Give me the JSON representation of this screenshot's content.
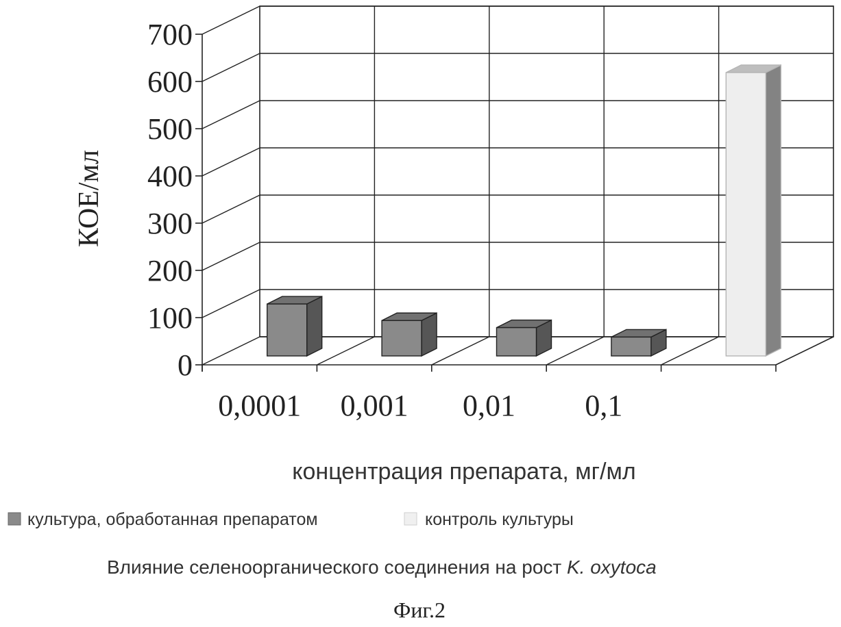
{
  "chart_data": {
    "type": "bar",
    "style": "3d",
    "ylabel": "КОЕ/мл",
    "xlabel": "концентрация препарата, мг/мл",
    "ylim": [
      0,
      700
    ],
    "yticks": [
      "0",
      "100",
      "200",
      "300",
      "400",
      "500",
      "600",
      "700"
    ],
    "categories": [
      "0,0001",
      "0,001",
      "0,01",
      "0,1",
      ""
    ],
    "series": [
      {
        "name": "культура, обработанная препаратом",
        "color": "#8a8a8a",
        "values": [
          110,
          75,
          60,
          40,
          null
        ]
      },
      {
        "name": "контроль культуры",
        "color": "#eeeeee",
        "values": [
          null,
          null,
          null,
          null,
          600
        ]
      }
    ],
    "legend_position": "bottom",
    "grid": true,
    "caption_plain": "Влияние селеноорганического соединения на рост ",
    "caption_italic": "K. oxytoca",
    "figure_label": "Фиг.2"
  }
}
